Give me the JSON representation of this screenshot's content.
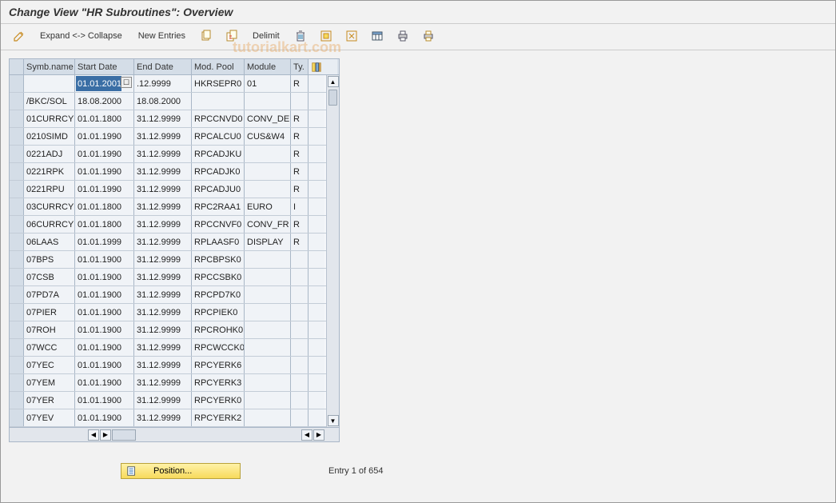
{
  "title": "Change View \"HR Subroutines\": Overview",
  "toolbar": {
    "expand_collapse": "Expand <-> Collapse",
    "new_entries": "New Entries",
    "delimit": "Delimit"
  },
  "columns": {
    "symb": "Symb.name",
    "start": "Start Date",
    "end": "End Date",
    "pool": "Mod. Pool",
    "module": "Module",
    "ty": "Ty."
  },
  "selected_start": "01.01.2001",
  "rows": [
    {
      "symb": "",
      "start": "01.01.2001",
      "end": ".12.9999",
      "pool": "HKRSEPR0",
      "module": "01",
      "ty": "R",
      "editing": true
    },
    {
      "symb": "/BKC/SOL",
      "start": "18.08.2000",
      "end": "18.08.2000",
      "pool": "",
      "module": "",
      "ty": ""
    },
    {
      "symb": "01CURRCY",
      "start": "01.01.1800",
      "end": "31.12.9999",
      "pool": "RPCCNVD0",
      "module": "CONV_DE",
      "ty": "R"
    },
    {
      "symb": "0210SIMD",
      "start": "01.01.1990",
      "end": "31.12.9999",
      "pool": "RPCALCU0",
      "module": "CUS&W4",
      "ty": "R"
    },
    {
      "symb": "0221ADJ",
      "start": "01.01.1990",
      "end": "31.12.9999",
      "pool": "RPCADJKU",
      "module": "",
      "ty": "R"
    },
    {
      "symb": "0221RPK",
      "start": "01.01.1990",
      "end": "31.12.9999",
      "pool": "RPCADJK0",
      "module": "",
      "ty": "R"
    },
    {
      "symb": "0221RPU",
      "start": "01.01.1990",
      "end": "31.12.9999",
      "pool": "RPCADJU0",
      "module": "",
      "ty": "R"
    },
    {
      "symb": "03CURRCY",
      "start": "01.01.1800",
      "end": "31.12.9999",
      "pool": "RPC2RAA1",
      "module": "EURO",
      "ty": "I"
    },
    {
      "symb": "06CURRCY",
      "start": "01.01.1800",
      "end": "31.12.9999",
      "pool": "RPCCNVF0",
      "module": "CONV_FR",
      "ty": "R"
    },
    {
      "symb": "06LAAS",
      "start": "01.01.1999",
      "end": "31.12.9999",
      "pool": "RPLAASF0",
      "module": "DISPLAY",
      "ty": "R"
    },
    {
      "symb": "07BPS",
      "start": "01.01.1900",
      "end": "31.12.9999",
      "pool": "RPCBPSK0",
      "module": "",
      "ty": ""
    },
    {
      "symb": "07CSB",
      "start": "01.01.1900",
      "end": "31.12.9999",
      "pool": "RPCCSBK0",
      "module": "",
      "ty": ""
    },
    {
      "symb": "07PD7A",
      "start": "01.01.1900",
      "end": "31.12.9999",
      "pool": "RPCPD7K0",
      "module": "",
      "ty": ""
    },
    {
      "symb": "07PIER",
      "start": "01.01.1900",
      "end": "31.12.9999",
      "pool": "RPCPIEK0",
      "module": "",
      "ty": ""
    },
    {
      "symb": "07ROH",
      "start": "01.01.1900",
      "end": "31.12.9999",
      "pool": "RPCROHK0",
      "module": "",
      "ty": ""
    },
    {
      "symb": "07WCC",
      "start": "01.01.1900",
      "end": "31.12.9999",
      "pool": "RPCWCCK0",
      "module": "",
      "ty": ""
    },
    {
      "symb": "07YEC",
      "start": "01.01.1900",
      "end": "31.12.9999",
      "pool": "RPCYERK6",
      "module": "",
      "ty": ""
    },
    {
      "symb": "07YEM",
      "start": "01.01.1900",
      "end": "31.12.9999",
      "pool": "RPCYERK3",
      "module": "",
      "ty": ""
    },
    {
      "symb": "07YER",
      "start": "01.01.1900",
      "end": "31.12.9999",
      "pool": "RPCYERK0",
      "module": "",
      "ty": ""
    },
    {
      "symb": "07YEV",
      "start": "01.01.1900",
      "end": "31.12.9999",
      "pool": "RPCYERK2",
      "module": "",
      "ty": ""
    }
  ],
  "footer": {
    "position_label": "Position...",
    "entry_text": "Entry 1 of 654"
  },
  "watermark": "tutorialkart.com",
  "colors": {
    "header_bg": "#d4dde7",
    "row_bg": "#f0f3f7",
    "select_bg": "#3a6ea5"
  }
}
